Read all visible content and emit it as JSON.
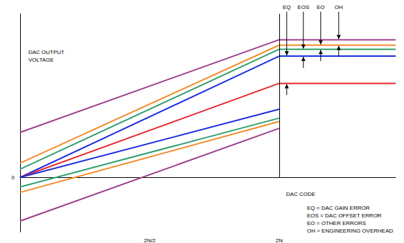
{
  "chart_data": {
    "type": "line",
    "x_label": "DAC CODE",
    "y_label": "DAC OUTPUT VOLTAGE",
    "xlim": [
      0,
      1.45
    ],
    "ylim": [
      -80,
      240
    ],
    "xticks": [
      {
        "value": 0.5,
        "label": "2N/2"
      },
      {
        "value": 1,
        "label": "2N"
      }
    ],
    "yticks": [
      0
    ],
    "grid": false,
    "series": [
      {
        "color": "#9c3c8c",
        "x": [
          0,
          1,
          1.45
        ],
        "values": [
          66,
          202,
          202
        ]
      },
      {
        "color": "#f28c28",
        "x": [
          0,
          1,
          1.45
        ],
        "values": [
          21,
          194,
          194
        ]
      },
      {
        "color": "#2e9e6e",
        "x": [
          0,
          1,
          1.45
        ],
        "values": [
          12,
          188,
          188
        ]
      },
      {
        "color": "#1a2ce0",
        "x": [
          0,
          1,
          1.45
        ],
        "values": [
          0,
          178,
          178
        ]
      },
      {
        "color": "#e8232a",
        "x": [
          0,
          1,
          1.45
        ],
        "values": [
          0,
          138,
          138
        ]
      },
      {
        "color": "#1a2ce0",
        "x": [
          0,
          1
        ],
        "values": [
          0,
          100
        ]
      },
      {
        "color": "#2e9e6e",
        "x": [
          0,
          1
        ],
        "values": [
          -14,
          87
        ]
      },
      {
        "color": "#f28c28",
        "x": [
          0,
          1
        ],
        "values": [
          -22,
          82
        ]
      },
      {
        "color": "#9c3c8c",
        "x": [
          0,
          1
        ],
        "values": [
          -64,
          72
        ]
      }
    ],
    "annotations": [
      "EQ",
      "EOS",
      "EO",
      "OH"
    ],
    "key": [
      "EQ = DAC GAIN ERROR",
      "EOS = DAC OFFSET ERROR",
      "EO = OTHER ERRORS",
      "OH = ENGINEERING OVERHEAD"
    ]
  }
}
